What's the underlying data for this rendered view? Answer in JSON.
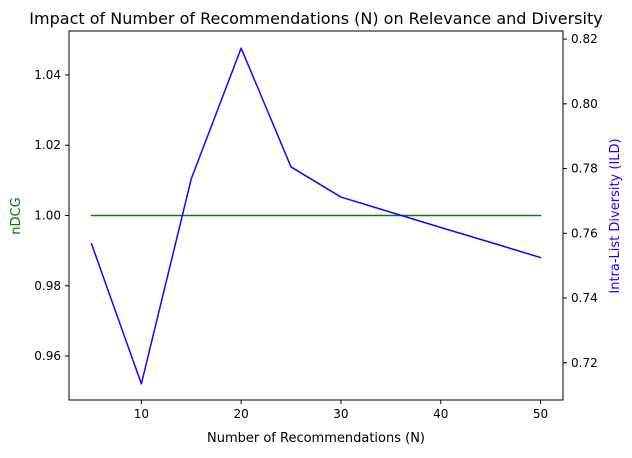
{
  "chart_data": {
    "type": "line",
    "title": "Impact of Number of Recommendations (N) on Relevance and Diversity",
    "xlabel": "Number of Recommendations (N)",
    "ylabel_left": "nDCG",
    "ylabel_right": "Intra-List Diversity (ILD)",
    "x": [
      5,
      10,
      15,
      20,
      25,
      30,
      35,
      40,
      45,
      50
    ],
    "xlim": [
      2.75,
      52.25
    ],
    "xticks": [
      10,
      20,
      30,
      40,
      50
    ],
    "ylim_left": [
      0.9475,
      1.0525
    ],
    "yticks_left": [
      "0.96",
      "0.98",
      "1.00",
      "1.02",
      "1.04"
    ],
    "ylim_right": [
      0.7085,
      0.8225
    ],
    "yticks_right": [
      "0.72",
      "0.74",
      "0.76",
      "0.78",
      "0.80",
      "0.82"
    ],
    "series": [
      {
        "axis": "left",
        "color": "#008000",
        "values": [
          1.0,
          1.0,
          1.0,
          1.0,
          1.0,
          1.0,
          1.0,
          1.0,
          1.0,
          1.0
        ]
      },
      {
        "axis": "right",
        "color": "#1f00ff",
        "values": [
          0.7568,
          0.7135,
          0.7768,
          0.8172,
          0.7805,
          0.7712,
          0.7665,
          0.7618,
          0.7572,
          0.7525
        ]
      }
    ],
    "left_axis_color": "#008000",
    "right_axis_color": "#1f00ff",
    "grid": false,
    "legend": "none"
  }
}
